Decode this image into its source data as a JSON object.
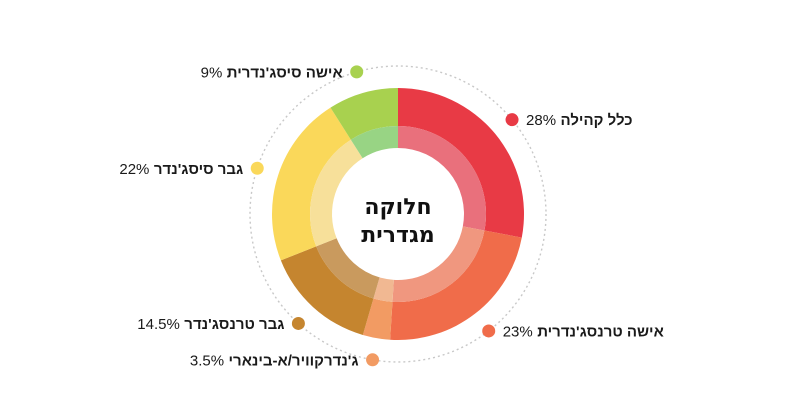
{
  "chart_data": {
    "type": "pie",
    "title": "חלוקה מגדרית",
    "title_lines": [
      "חלוקה",
      "מגדרית"
    ],
    "categories": [
      "כלל קהילה",
      "אישה טרנסג'נדרית",
      "ג'נדרקוויר/א-בינארי",
      "גבר טרנסג'נדר",
      "גבר סיסג'נדר",
      "אישה סיסג'נדרית"
    ],
    "values": [
      28,
      23,
      3.5,
      14.5,
      22,
      9
    ],
    "value_labels": [
      "28%",
      "23%",
      "3.5%",
      "14.5%",
      "22%",
      "9%"
    ],
    "colors": [
      "#e83a45",
      "#f06c4a",
      "#f29b63",
      "#c5852f",
      "#fad85a",
      "#a8d14f"
    ],
    "inner_colors": [
      "#e9707c",
      "#f0977f",
      "#f1b892",
      "#c99a5e",
      "#f7e09a",
      "#98d484"
    ],
    "legend_placement": "around the ring, connected by a dotted circle"
  }
}
